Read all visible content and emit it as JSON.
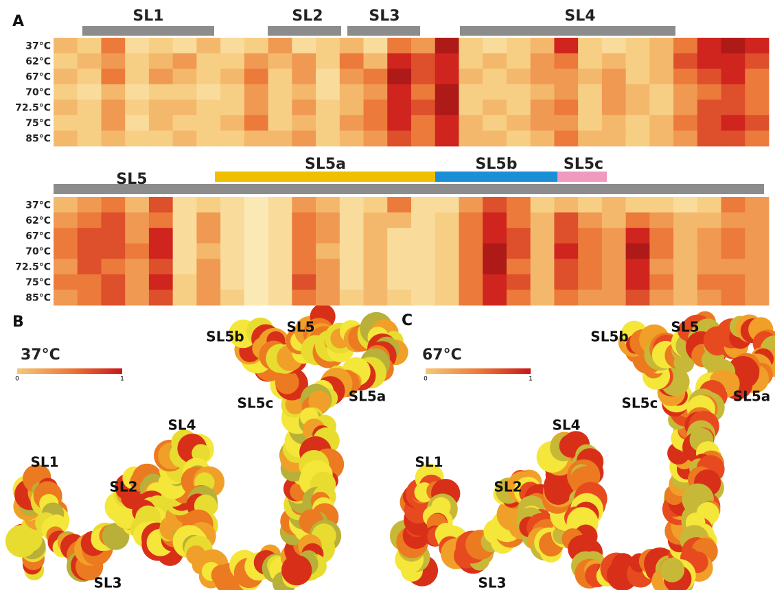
{
  "panel_a": {
    "label": "A",
    "heatmaps": [
      {
        "regions": [
          {
            "name": "SL1",
            "color": "#8c8c8c"
          },
          {
            "name": "SL2",
            "color": "#8c8c8c"
          },
          {
            "name": "SL3",
            "color": "#8c8c8c"
          },
          {
            "name": "SL4",
            "color": "#8c8c8c"
          }
        ],
        "rows": [
          {
            "label": "37°C",
            "values": [
              0.4,
              0.3,
              0.6,
              0.2,
              0.3,
              0.2,
              0.4,
              0.2,
              0.3,
              0.5,
              0.2,
              0.3,
              0.4,
              0.2,
              0.6,
              0.5,
              0.9,
              0.3,
              0.2,
              0.3,
              0.4,
              0.8,
              0.3,
              0.2,
              0.3,
              0.4,
              0.6,
              0.8,
              0.9,
              0.8
            ]
          },
          {
            "label": "62°C",
            "values": [
              0.3,
              0.4,
              0.5,
              0.3,
              0.4,
              0.5,
              0.3,
              0.3,
              0.5,
              0.4,
              0.5,
              0.3,
              0.6,
              0.4,
              0.8,
              0.7,
              0.8,
              0.3,
              0.4,
              0.3,
              0.5,
              0.6,
              0.3,
              0.4,
              0.3,
              0.4,
              0.7,
              0.8,
              0.8,
              0.7
            ]
          },
          {
            "label": "67°C",
            "values": [
              0.4,
              0.3,
              0.6,
              0.3,
              0.5,
              0.4,
              0.3,
              0.4,
              0.6,
              0.3,
              0.5,
              0.2,
              0.5,
              0.6,
              0.9,
              0.7,
              0.8,
              0.4,
              0.3,
              0.4,
              0.5,
              0.5,
              0.4,
              0.5,
              0.3,
              0.4,
              0.6,
              0.7,
              0.8,
              0.6
            ]
          },
          {
            "label": "70°C",
            "values": [
              0.3,
              0.2,
              0.4,
              0.2,
              0.3,
              0.3,
              0.2,
              0.3,
              0.5,
              0.3,
              0.4,
              0.2,
              0.4,
              0.5,
              0.8,
              0.6,
              0.9,
              0.3,
              0.3,
              0.3,
              0.4,
              0.5,
              0.3,
              0.5,
              0.4,
              0.3,
              0.5,
              0.6,
              0.7,
              0.6
            ]
          },
          {
            "label": "72.5°C",
            "values": [
              0.4,
              0.3,
              0.5,
              0.3,
              0.4,
              0.4,
              0.3,
              0.3,
              0.5,
              0.3,
              0.5,
              0.3,
              0.4,
              0.6,
              0.8,
              0.7,
              0.9,
              0.3,
              0.4,
              0.3,
              0.5,
              0.6,
              0.3,
              0.5,
              0.4,
              0.3,
              0.5,
              0.7,
              0.7,
              0.6
            ]
          },
          {
            "label": "75°C",
            "values": [
              0.3,
              0.3,
              0.5,
              0.2,
              0.4,
              0.3,
              0.3,
              0.4,
              0.6,
              0.3,
              0.4,
              0.3,
              0.5,
              0.6,
              0.8,
              0.6,
              0.8,
              0.4,
              0.3,
              0.4,
              0.5,
              0.5,
              0.3,
              0.4,
              0.3,
              0.4,
              0.6,
              0.7,
              0.8,
              0.7
            ]
          },
          {
            "label": "85°C",
            "values": [
              0.4,
              0.3,
              0.4,
              0.3,
              0.3,
              0.4,
              0.3,
              0.3,
              0.4,
              0.4,
              0.5,
              0.3,
              0.4,
              0.5,
              0.7,
              0.6,
              0.8,
              0.4,
              0.4,
              0.3,
              0.4,
              0.6,
              0.4,
              0.4,
              0.3,
              0.4,
              0.5,
              0.7,
              0.7,
              0.6
            ]
          }
        ]
      },
      {
        "regions": [
          {
            "name": "SL5",
            "color": "#8c8c8c"
          },
          {
            "name": "SL5a",
            "color": "#f0c000"
          },
          {
            "name": "SL5b",
            "color": "#1a8fd6"
          },
          {
            "name": "SL5c",
            "color": "#f09ac0"
          }
        ],
        "rows": [
          {
            "label": "37°C",
            "values": [
              0.4,
              0.5,
              0.6,
              0.4,
              0.7,
              0.2,
              0.3,
              0.2,
              0.1,
              0.2,
              0.5,
              0.4,
              0.2,
              0.3,
              0.6,
              0.2,
              0.2,
              0.5,
              0.7,
              0.6,
              0.3,
              0.4,
              0.3,
              0.4,
              0.3,
              0.3,
              0.2,
              0.3,
              0.6,
              0.5
            ]
          },
          {
            "label": "62°C",
            "values": [
              0.5,
              0.6,
              0.7,
              0.5,
              0.6,
              0.2,
              0.5,
              0.2,
              0.1,
              0.2,
              0.6,
              0.5,
              0.2,
              0.4,
              0.4,
              0.2,
              0.3,
              0.6,
              0.8,
              0.6,
              0.4,
              0.7,
              0.5,
              0.4,
              0.6,
              0.5,
              0.4,
              0.4,
              0.5,
              0.5
            ]
          },
          {
            "label": "67°C",
            "values": [
              0.6,
              0.7,
              0.7,
              0.5,
              0.8,
              0.2,
              0.5,
              0.2,
              0.1,
              0.2,
              0.6,
              0.5,
              0.2,
              0.4,
              0.2,
              0.2,
              0.3,
              0.6,
              0.8,
              0.7,
              0.4,
              0.7,
              0.6,
              0.5,
              0.8,
              0.6,
              0.4,
              0.5,
              0.6,
              0.5
            ]
          },
          {
            "label": "70°C",
            "values": [
              0.6,
              0.7,
              0.7,
              0.6,
              0.8,
              0.2,
              0.4,
              0.2,
              0.1,
              0.2,
              0.6,
              0.4,
              0.2,
              0.4,
              0.2,
              0.2,
              0.3,
              0.6,
              0.9,
              0.7,
              0.4,
              0.8,
              0.6,
              0.5,
              0.9,
              0.6,
              0.4,
              0.5,
              0.6,
              0.5
            ]
          },
          {
            "label": "72.5°C",
            "values": [
              0.5,
              0.7,
              0.6,
              0.5,
              0.7,
              0.2,
              0.5,
              0.2,
              0.1,
              0.2,
              0.6,
              0.5,
              0.2,
              0.4,
              0.2,
              0.2,
              0.3,
              0.6,
              0.9,
              0.6,
              0.4,
              0.7,
              0.6,
              0.5,
              0.8,
              0.5,
              0.4,
              0.5,
              0.5,
              0.5
            ]
          },
          {
            "label": "75°C",
            "values": [
              0.6,
              0.6,
              0.7,
              0.5,
              0.8,
              0.3,
              0.5,
              0.2,
              0.1,
              0.2,
              0.7,
              0.5,
              0.2,
              0.4,
              0.2,
              0.2,
              0.3,
              0.6,
              0.8,
              0.7,
              0.4,
              0.7,
              0.6,
              0.5,
              0.8,
              0.6,
              0.4,
              0.6,
              0.6,
              0.5
            ]
          },
          {
            "label": "85°C",
            "values": [
              0.5,
              0.6,
              0.7,
              0.5,
              0.7,
              0.3,
              0.5,
              0.3,
              0.1,
              0.2,
              0.6,
              0.5,
              0.3,
              0.4,
              0.3,
              0.2,
              0.3,
              0.6,
              0.8,
              0.6,
              0.4,
              0.6,
              0.5,
              0.5,
              0.7,
              0.5,
              0.4,
              0.5,
              0.6,
              0.5
            ]
          }
        ]
      }
    ]
  },
  "panel_b": {
    "label": "B",
    "temperature": "37°C",
    "colorbar": [
      0,
      1
    ],
    "labels": [
      "SL1",
      "SL2",
      "SL3",
      "SL4",
      "SL5",
      "SL5a",
      "SL5b",
      "SL5c"
    ]
  },
  "panel_c": {
    "label": "C",
    "temperature": "67°C",
    "colorbar": [
      0,
      1
    ],
    "labels": [
      "SL1",
      "SL2",
      "SL3",
      "SL4",
      "SL5",
      "SL5a",
      "SL5b",
      "SL5c"
    ]
  }
}
